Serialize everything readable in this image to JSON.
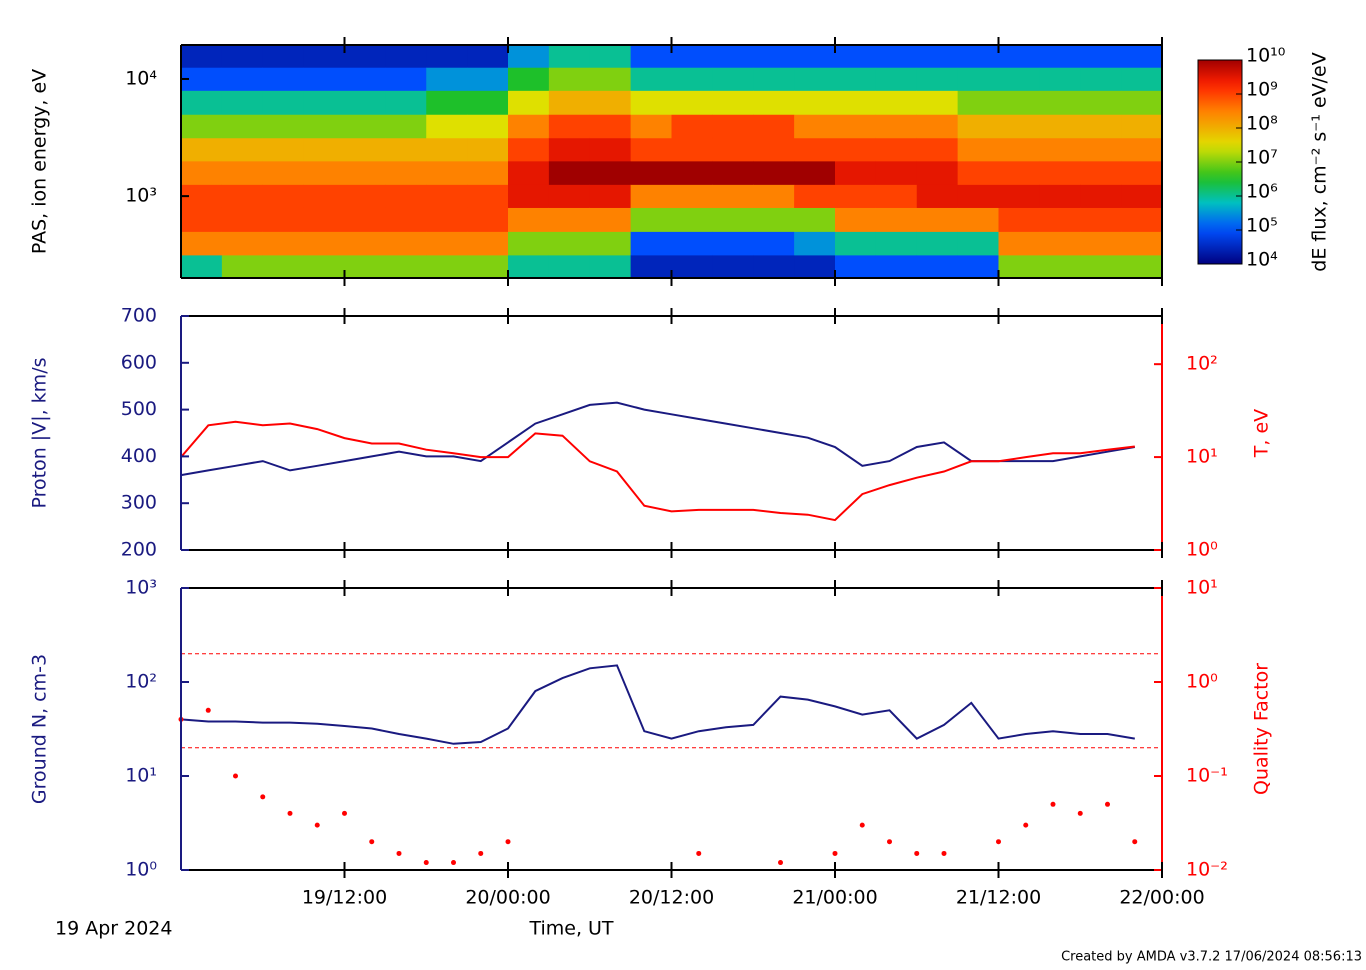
{
  "chart_data": [
    {
      "type": "heatmap",
      "ylabel": "PAS, ion energy, eV",
      "zlabel": "dE flux, cm⁻² s⁻¹ eV/eV",
      "xlim": [
        "2024-04-19T00:00",
        "2024-04-22T00:00"
      ],
      "ylim": [
        200,
        19500
      ],
      "ylog": true,
      "yticks": [
        {
          "value": 1000,
          "label": "10³"
        },
        {
          "value": 10000,
          "label": "10⁴"
        }
      ],
      "time_bins": [
        "2024-04-19T00:00",
        "2024-04-19T03:00",
        "2024-04-19T06:00",
        "2024-04-19T09:00",
        "2024-04-19T12:00",
        "2024-04-19T15:00",
        "2024-04-19T18:00",
        "2024-04-19T21:00",
        "2024-04-20T00:00",
        "2024-04-20T03:00",
        "2024-04-20T06:00",
        "2024-04-20T09:00",
        "2024-04-20T12:00",
        "2024-04-20T15:00",
        "2024-04-20T18:00",
        "2024-04-20T21:00",
        "2024-04-21T00:00",
        "2024-04-21T03:00",
        "2024-04-21T06:00",
        "2024-04-21T09:00",
        "2024-04-21T12:00",
        "2024-04-21T15:00",
        "2024-04-21T18:00",
        "2024-04-21T21:00",
        "2024-04-22T00:00"
      ],
      "energy_bins": [
        200,
        315,
        500,
        800,
        1260,
        2000,
        3150,
        5000,
        8000,
        12600,
        19500
      ],
      "z": [
        [
          1000000.0,
          300000000.0,
          1000000000.0,
          1000000000.0,
          300000000.0,
          100000000.0,
          10000000.0,
          1000000.0,
          100000.0,
          30000.0
        ],
        [
          10000000.0,
          300000000.0,
          1000000000.0,
          1000000000.0,
          300000000.0,
          100000000.0,
          10000000.0,
          1000000.0,
          100000.0,
          30000.0
        ],
        [
          10000000.0,
          300000000.0,
          1000000000.0,
          1000000000.0,
          300000000.0,
          100000000.0,
          10000000.0,
          1000000.0,
          100000.0,
          30000.0
        ],
        [
          10000000.0,
          300000000.0,
          1000000000.0,
          1000000000.0,
          300000000.0,
          100000000.0,
          10000000.0,
          1000000.0,
          100000.0,
          30000.0
        ],
        [
          10000000.0,
          300000000.0,
          1000000000.0,
          1000000000.0,
          300000000.0,
          100000000.0,
          10000000.0,
          1000000.0,
          100000.0,
          30000.0
        ],
        [
          10000000.0,
          300000000.0,
          1000000000.0,
          1000000000.0,
          300000000.0,
          100000000.0,
          10000000.0,
          1000000.0,
          100000.0,
          30000.0
        ],
        [
          10000000.0,
          300000000.0,
          1000000000.0,
          1000000000.0,
          300000000.0,
          100000000.0,
          30000000.0,
          3000000.0,
          300000.0,
          30000.0
        ],
        [
          10000000.0,
          300000000.0,
          1000000000.0,
          1000000000.0,
          300000000.0,
          100000000.0,
          30000000.0,
          3000000.0,
          300000.0,
          30000.0
        ],
        [
          1000000.0,
          10000000.0,
          300000000.0,
          3000000000.0,
          3000000000.0,
          1000000000.0,
          300000000.0,
          30000000.0,
          3000000.0,
          300000.0
        ],
        [
          1000000.0,
          10000000.0,
          300000000.0,
          3000000000.0,
          10000000000.0,
          3000000000.0,
          1000000000.0,
          100000000.0,
          10000000.0,
          1000000.0
        ],
        [
          1000000.0,
          10000000.0,
          300000000.0,
          3000000000.0,
          10000000000.0,
          3000000000.0,
          1000000000.0,
          100000000.0,
          10000000.0,
          1000000.0
        ],
        [
          30000.0,
          100000.0,
          10000000.0,
          300000000.0,
          10000000000.0,
          1000000000.0,
          300000000.0,
          30000000.0,
          1000000.0,
          100000.0
        ],
        [
          30000.0,
          100000.0,
          10000000.0,
          300000000.0,
          10000000000.0,
          1000000000.0,
          1000000000.0,
          30000000.0,
          1000000.0,
          100000.0
        ],
        [
          30000.0,
          100000.0,
          10000000.0,
          300000000.0,
          10000000000.0,
          1000000000.0,
          1000000000.0,
          30000000.0,
          1000000.0,
          100000.0
        ],
        [
          30000.0,
          100000.0,
          10000000.0,
          300000000.0,
          10000000000.0,
          1000000000.0,
          1000000000.0,
          30000000.0,
          1000000.0,
          100000.0
        ],
        [
          30000.0,
          300000.0,
          10000000.0,
          1000000000.0,
          10000000000.0,
          1000000000.0,
          300000000.0,
          30000000.0,
          1000000.0,
          100000.0
        ],
        [
          100000.0,
          1000000.0,
          300000000.0,
          1000000000.0,
          3000000000.0,
          1000000000.0,
          300000000.0,
          30000000.0,
          1000000.0,
          100000.0
        ],
        [
          100000.0,
          1000000.0,
          300000000.0,
          1000000000.0,
          3000000000.0,
          1000000000.0,
          300000000.0,
          30000000.0,
          1000000.0,
          100000.0
        ],
        [
          100000.0,
          1000000.0,
          300000000.0,
          3000000000.0,
          3000000000.0,
          1000000000.0,
          300000000.0,
          30000000.0,
          1000000.0,
          100000.0
        ],
        [
          100000.0,
          1000000.0,
          300000000.0,
          3000000000.0,
          1000000000.0,
          300000000.0,
          100000000.0,
          10000000.0,
          1000000.0,
          100000.0
        ],
        [
          10000000.0,
          300000000.0,
          1000000000.0,
          3000000000.0,
          1000000000.0,
          300000000.0,
          100000000.0,
          10000000.0,
          1000000.0,
          100000.0
        ],
        [
          10000000.0,
          300000000.0,
          1000000000.0,
          3000000000.0,
          1000000000.0,
          300000000.0,
          100000000.0,
          10000000.0,
          1000000.0,
          100000.0
        ],
        [
          10000000.0,
          300000000.0,
          1000000000.0,
          3000000000.0,
          1000000000.0,
          300000000.0,
          100000000.0,
          10000000.0,
          1000000.0,
          100000.0
        ],
        [
          10000000.0,
          300000000.0,
          1000000000.0,
          3000000000.0,
          1000000000.0,
          300000000.0,
          100000000.0,
          10000000.0,
          1000000.0,
          100000.0
        ]
      ],
      "zlim": [
        10000,
        10000000000
      ],
      "zlog": true,
      "zticks": [
        {
          "value": 10000,
          "label": "10⁴"
        },
        {
          "value": 100000,
          "label": "10⁵"
        },
        {
          "value": 1000000,
          "label": "10⁶"
        },
        {
          "value": 10000000,
          "label": "10⁷"
        },
        {
          "value": 100000000,
          "label": "10⁸"
        },
        {
          "value": 1000000000,
          "label": "10⁹"
        },
        {
          "value": 10000000000,
          "label": "10¹⁰"
        }
      ]
    },
    {
      "type": "line",
      "ylabel": "Proton |V|, km/s",
      "y2label": "T, eV",
      "xlim": [
        "2024-04-19T00:00",
        "2024-04-22T00:00"
      ],
      "ylim": [
        200,
        700
      ],
      "yticks": [
        200,
        300,
        400,
        500,
        600,
        700
      ],
      "y2lim": [
        1,
        330
      ],
      "y2log": true,
      "y2ticks": [
        {
          "value": 1,
          "label": "10⁰"
        },
        {
          "value": 10,
          "label": "10¹"
        },
        {
          "value": 100,
          "label": "10²"
        }
      ],
      "x": [
        "2024-04-19T00:00",
        "2024-04-19T02:00",
        "2024-04-19T04:00",
        "2024-04-19T06:00",
        "2024-04-19T08:00",
        "2024-04-19T10:00",
        "2024-04-19T12:00",
        "2024-04-19T14:00",
        "2024-04-19T16:00",
        "2024-04-19T18:00",
        "2024-04-19T20:00",
        "2024-04-19T22:00",
        "2024-04-20T00:00",
        "2024-04-20T02:00",
        "2024-04-20T04:00",
        "2024-04-20T06:00",
        "2024-04-20T08:00",
        "2024-04-20T10:00",
        "2024-04-20T12:00",
        "2024-04-20T14:00",
        "2024-04-20T16:00",
        "2024-04-20T18:00",
        "2024-04-20T20:00",
        "2024-04-20T22:00",
        "2024-04-21T00:00",
        "2024-04-21T02:00",
        "2024-04-21T04:00",
        "2024-04-21T06:00",
        "2024-04-21T08:00",
        "2024-04-21T10:00",
        "2024-04-21T12:00",
        "2024-04-21T14:00",
        "2024-04-21T16:00",
        "2024-04-21T18:00",
        "2024-04-21T20:00",
        "2024-04-21T22:00"
      ],
      "series": [
        {
          "color": "#1a1a80",
          "values": [
            360,
            370,
            380,
            390,
            370,
            380,
            390,
            400,
            410,
            400,
            400,
            390,
            430,
            470,
            490,
            510,
            515,
            500,
            490,
            480,
            470,
            460,
            450,
            440,
            420,
            380,
            390,
            420,
            430,
            390,
            390,
            390,
            390,
            400,
            410,
            420
          ]
        },
        {
          "color": "#ff0000",
          "axis": "y2",
          "values": [
            10,
            22,
            24,
            22,
            23,
            20,
            16,
            14,
            14,
            12,
            11,
            10,
            10,
            18,
            17,
            9,
            7,
            3,
            2.6,
            2.7,
            2.7,
            2.7,
            2.5,
            2.4,
            2.1,
            4,
            5,
            6,
            7,
            9,
            9,
            10,
            11,
            11,
            12,
            13
          ]
        }
      ]
    },
    {
      "type": "line",
      "ylabel": "Ground N, cm-3",
      "y2label": "Quality Factor",
      "xlabel": "Time, UT",
      "xlim": [
        "2024-04-19T00:00",
        "2024-04-22T00:00"
      ],
      "xticks": [
        {
          "value": "2024-04-19T12:00",
          "label": "19/12:00"
        },
        {
          "value": "2024-04-20T00:00",
          "label": "20/00:00"
        },
        {
          "value": "2024-04-20T12:00",
          "label": "20/12:00"
        },
        {
          "value": "2024-04-21T00:00",
          "label": "21/00:00"
        },
        {
          "value": "2024-04-21T12:00",
          "label": "21/12:00"
        },
        {
          "value": "2024-04-22T00:00",
          "label": "22/00:00"
        }
      ],
      "ylim": [
        1,
        1000
      ],
      "ylog": true,
      "yticks": [
        {
          "value": 1,
          "label": "10⁰"
        },
        {
          "value": 10,
          "label": "10¹"
        },
        {
          "value": 100,
          "label": "10²"
        },
        {
          "value": 1000,
          "label": "10³"
        }
      ],
      "y2lim": [
        0.01,
        10
      ],
      "y2log": true,
      "y2ticks": [
        {
          "value": 0.01,
          "label": "10⁻²"
        },
        {
          "value": 0.1,
          "label": "10⁻¹"
        },
        {
          "value": 1,
          "label": "10⁰"
        },
        {
          "value": 10,
          "label": "10¹"
        }
      ],
      "reference_lines": [
        2,
        0.2
      ],
      "x": [
        "2024-04-19T00:00",
        "2024-04-19T02:00",
        "2024-04-19T04:00",
        "2024-04-19T06:00",
        "2024-04-19T08:00",
        "2024-04-19T10:00",
        "2024-04-19T12:00",
        "2024-04-19T14:00",
        "2024-04-19T16:00",
        "2024-04-19T18:00",
        "2024-04-19T20:00",
        "2024-04-19T22:00",
        "2024-04-20T00:00",
        "2024-04-20T02:00",
        "2024-04-20T04:00",
        "2024-04-20T06:00",
        "2024-04-20T08:00",
        "2024-04-20T10:00",
        "2024-04-20T12:00",
        "2024-04-20T14:00",
        "2024-04-20T16:00",
        "2024-04-20T18:00",
        "2024-04-20T20:00",
        "2024-04-20T22:00",
        "2024-04-21T00:00",
        "2024-04-21T02:00",
        "2024-04-21T04:00",
        "2024-04-21T06:00",
        "2024-04-21T08:00",
        "2024-04-21T10:00",
        "2024-04-21T12:00",
        "2024-04-21T14:00",
        "2024-04-21T16:00",
        "2024-04-21T18:00",
        "2024-04-21T20:00",
        "2024-04-21T22:00"
      ],
      "series": [
        {
          "color": "#1a1a80",
          "values": [
            40,
            38,
            38,
            37,
            37,
            36,
            34,
            32,
            28,
            25,
            22,
            23,
            32,
            80,
            110,
            140,
            150,
            30,
            25,
            30,
            33,
            35,
            70,
            65,
            55,
            45,
            50,
            25,
            35,
            60,
            25,
            28,
            30,
            28,
            28,
            25
          ]
        },
        {
          "color": "#ff0000",
          "axis": "y2",
          "mode": "points",
          "values": [
            0.4,
            0.5,
            0.1,
            0.06,
            0.04,
            0.03,
            0.04,
            0.02,
            0.015,
            0.012,
            0.012,
            0.015,
            0.02,
            null,
            null,
            null,
            null,
            null,
            null,
            0.015,
            null,
            null,
            0.012,
            null,
            0.015,
            0.03,
            0.02,
            0.015,
            0.015,
            null,
            0.02,
            0.03,
            0.05,
            0.04,
            0.05,
            0.02
          ]
        }
      ]
    }
  ],
  "start_date": "19 Apr 2024",
  "credit": "Created by AMDA v3.7.2 17/06/2024 08:56:13"
}
